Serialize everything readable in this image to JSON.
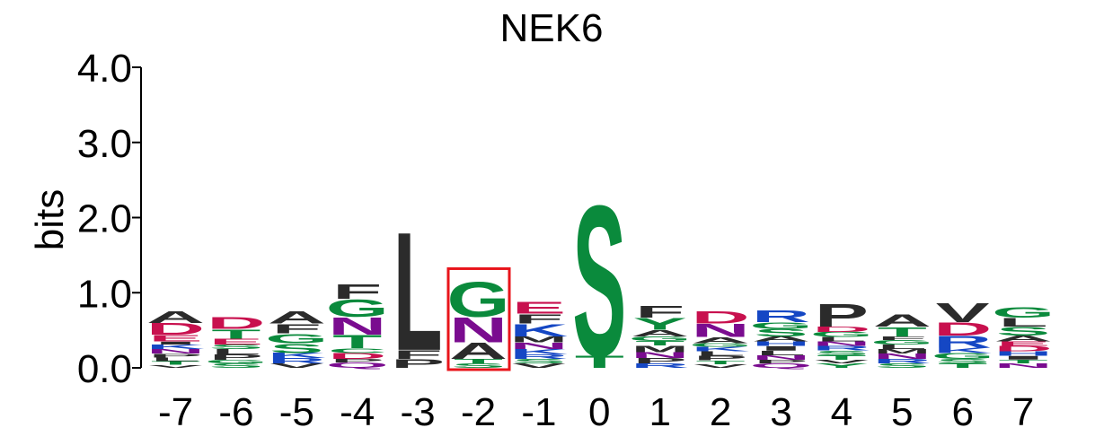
{
  "chart_data": {
    "type": "sequence-logo",
    "title": "NEK6",
    "ylabel": "bits",
    "ylim": [
      0,
      4
    ],
    "yticks": [
      "0.0",
      "1.0",
      "2.0",
      "3.0",
      "4.0"
    ],
    "positions": [
      -7,
      -6,
      -5,
      -4,
      -3,
      -2,
      -1,
      0,
      1,
      2,
      3,
      4,
      5,
      6,
      7
    ],
    "highlight_position": -2,
    "highlight_color": "#e8141b",
    "colors": {
      "hydrophobic": "#2b2b2b",
      "polar": "#0a8a3c",
      "basic": "#1547c4",
      "acidic": "#c8104e",
      "amide": "#7a0c8f"
    },
    "residue_colors": {
      "A": "#2b2b2b",
      "V": "#2b2b2b",
      "L": "#2b2b2b",
      "I": "#2b2b2b",
      "P": "#2b2b2b",
      "F": "#2b2b2b",
      "M": "#2b2b2b",
      "W": "#2b2b2b",
      "G": "#0a8a3c",
      "S": "#0a8a3c",
      "T": "#0a8a3c",
      "Y": "#0a8a3c",
      "C": "#0a8a3c",
      "K": "#1547c4",
      "R": "#1547c4",
      "H": "#1547c4",
      "D": "#c8104e",
      "E": "#c8104e",
      "N": "#7a0c8f",
      "Q": "#7a0c8f"
    },
    "stacks": [
      {
        "position": -7,
        "letters": [
          [
            "V",
            0.04
          ],
          [
            "T",
            0.05
          ],
          [
            "L",
            0.05
          ],
          [
            "P",
            0.05
          ],
          [
            "N",
            0.06
          ],
          [
            "K",
            0.06
          ],
          [
            "I",
            0.04
          ],
          [
            "E",
            0.09
          ],
          [
            "D",
            0.16
          ],
          [
            "A",
            0.16
          ]
        ]
      },
      {
        "position": -6,
        "letters": [
          [
            "S",
            0.06
          ],
          [
            "G",
            0.05
          ],
          [
            "P",
            0.07
          ],
          [
            "L",
            0.07
          ],
          [
            "S",
            0.06
          ],
          [
            "E",
            0.08
          ],
          [
            "T",
            0.13
          ],
          [
            "D",
            0.16
          ]
        ]
      },
      {
        "position": -5,
        "letters": [
          [
            "V",
            0.06
          ],
          [
            "R",
            0.07
          ],
          [
            "K",
            0.07
          ],
          [
            "S",
            0.13
          ],
          [
            "G",
            0.13
          ],
          [
            "F",
            0.13
          ],
          [
            "A",
            0.17
          ]
        ]
      },
      {
        "position": -4,
        "letters": [
          [
            "Q",
            0.07
          ],
          [
            "P",
            0.05
          ],
          [
            "D",
            0.08
          ],
          [
            "C",
            0.06
          ],
          [
            "T",
            0.18
          ],
          [
            "N",
            0.24
          ],
          [
            "G",
            0.24
          ],
          [
            "F",
            0.2
          ]
        ]
      },
      {
        "position": -3,
        "letters": [
          [
            "P",
            0.12
          ],
          [
            "F",
            0.12
          ],
          [
            "L",
            1.62
          ]
        ]
      },
      {
        "position": -2,
        "letters": [
          [
            "S",
            0.06
          ],
          [
            "T",
            0.06
          ],
          [
            "A",
            0.22
          ],
          [
            "N",
            0.34
          ],
          [
            "G",
            0.48
          ]
        ]
      },
      {
        "position": -1,
        "letters": [
          [
            "V",
            0.06
          ],
          [
            "S",
            0.06
          ],
          [
            "R",
            0.06
          ],
          [
            "K",
            0.07
          ],
          [
            "N",
            0.09
          ],
          [
            "M",
            0.08
          ],
          [
            "K",
            0.17
          ],
          [
            "F",
            0.13
          ],
          [
            "E",
            0.16
          ]
        ]
      },
      {
        "position": 0,
        "letters": [
          [
            "T",
            0.17
          ],
          [
            "S",
            2.06
          ]
        ]
      },
      {
        "position": 1,
        "letters": [
          [
            "R",
            0.06
          ],
          [
            "P",
            0.07
          ],
          [
            "N",
            0.08
          ],
          [
            "M",
            0.09
          ],
          [
            "T",
            0.06
          ],
          [
            "G",
            0.06
          ],
          [
            "A",
            0.09
          ],
          [
            "Y",
            0.16
          ],
          [
            "F",
            0.16
          ]
        ]
      },
      {
        "position": 2,
        "letters": [
          [
            "V",
            0.05
          ],
          [
            "T",
            0.05
          ],
          [
            "P",
            0.06
          ],
          [
            "L",
            0.06
          ],
          [
            "K",
            0.06
          ],
          [
            "G",
            0.05
          ],
          [
            "A",
            0.08
          ],
          [
            "N",
            0.18
          ],
          [
            "D",
            0.17
          ]
        ]
      },
      {
        "position": 3,
        "letters": [
          [
            "Q",
            0.06
          ],
          [
            "P",
            0.05
          ],
          [
            "N",
            0.06
          ],
          [
            "L",
            0.06
          ],
          [
            "I",
            0.06
          ],
          [
            "H",
            0.06
          ],
          [
            "A",
            0.07
          ],
          [
            "S",
            0.1
          ],
          [
            "G",
            0.09
          ],
          [
            "R",
            0.16
          ]
        ]
      },
      {
        "position": 4,
        "letters": [
          [
            "Y",
            0.06
          ],
          [
            "V",
            0.05
          ],
          [
            "T",
            0.06
          ],
          [
            "S",
            0.06
          ],
          [
            "R",
            0.06
          ],
          [
            "N",
            0.06
          ],
          [
            "L",
            0.06
          ],
          [
            "G",
            0.07
          ],
          [
            "D",
            0.07
          ],
          [
            "P",
            0.31
          ]
        ]
      },
      {
        "position": 5,
        "letters": [
          [
            "S",
            0.06
          ],
          [
            "R",
            0.06
          ],
          [
            "N",
            0.07
          ],
          [
            "M",
            0.06
          ],
          [
            "L",
            0.06
          ],
          [
            "G",
            0.06
          ],
          [
            "F",
            0.05
          ],
          [
            "T",
            0.13
          ],
          [
            "A",
            0.17
          ]
        ]
      },
      {
        "position": 6,
        "letters": [
          [
            "T",
            0.06
          ],
          [
            "S",
            0.06
          ],
          [
            "G",
            0.08
          ],
          [
            "K",
            0.07
          ],
          [
            "R",
            0.16
          ],
          [
            "D",
            0.18
          ],
          [
            "V",
            0.26
          ]
        ]
      },
      {
        "position": 7,
        "letters": [
          [
            "N",
            0.06
          ],
          [
            "T",
            0.05
          ],
          [
            "I",
            0.05
          ],
          [
            "H",
            0.06
          ],
          [
            "D",
            0.07
          ],
          [
            "E",
            0.06
          ],
          [
            "A",
            0.08
          ],
          [
            "S",
            0.12
          ],
          [
            "L",
            0.12
          ],
          [
            "G",
            0.14
          ]
        ]
      }
    ]
  }
}
